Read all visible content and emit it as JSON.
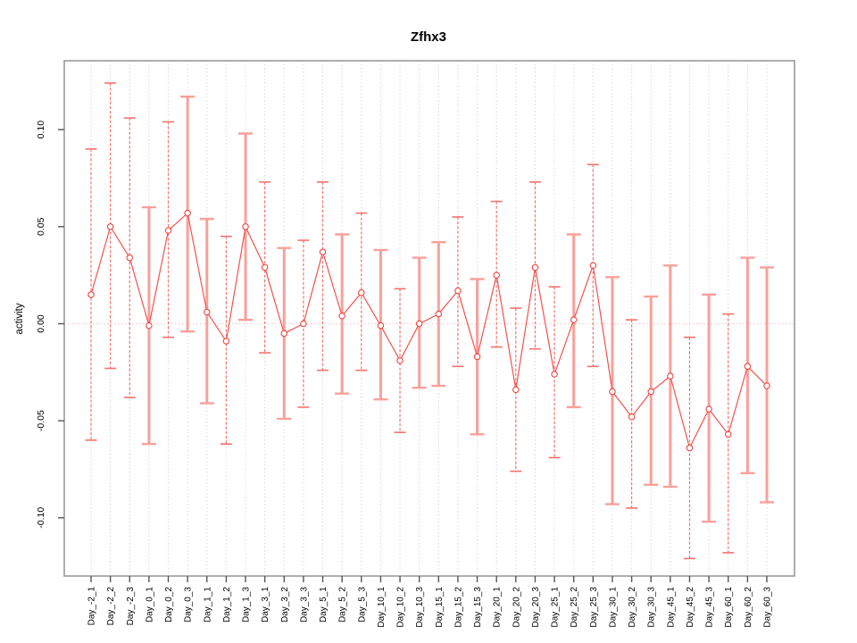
{
  "chart_data": {
    "type": "line",
    "title": "Zfhx3",
    "xlabel": "",
    "ylabel": "activity",
    "legend": "none",
    "grid": "vertical-dotted",
    "zero_reference_line": true,
    "ylim": [
      -0.13,
      0.1355
    ],
    "yticks": [
      -0.1,
      -0.05,
      0.0,
      0.05,
      0.1
    ],
    "ytick_labels": [
      "-0.10",
      "-0.05",
      "0.00",
      "0.05",
      "0.10"
    ],
    "categories": [
      "Day_-2_1",
      "Day_-2_2",
      "Day_-2_3",
      "Day_0_1",
      "Day_0_2",
      "Day_0_3",
      "Day_1_1",
      "Day_1_2",
      "Day_1_3",
      "Day_3_1",
      "Day_3_2",
      "Day_3_3",
      "Day_5_1",
      "Day_5_2",
      "Day_5_3",
      "Day_10_1",
      "Day_10_2",
      "Day_10_3",
      "Day_15_1",
      "Day_15_2",
      "Day_15_3",
      "Day_20_1",
      "Day_20_2",
      "Day_20_3",
      "Day_25_1",
      "Day_25_2",
      "Day_25_3",
      "Day_30_1",
      "Day_30_2",
      "Day_30_3",
      "Day_45_1",
      "Day_45_2",
      "Day_45_3",
      "Day_60_1",
      "Day_60_2",
      "Day_60_3"
    ],
    "series": [
      {
        "name": "activity",
        "marker": "open-circle",
        "values": [
          0.015,
          0.05,
          0.034,
          -0.001,
          0.048,
          0.057,
          0.006,
          -0.009,
          0.05,
          0.029,
          -0.005,
          0.0,
          0.037,
          0.004,
          0.016,
          -0.001,
          -0.019,
          0.0,
          0.005,
          0.017,
          -0.017,
          0.025,
          -0.034,
          0.029,
          -0.026,
          0.002,
          0.03,
          -0.035,
          -0.048,
          -0.035,
          -0.027,
          -0.064,
          -0.044,
          -0.057,
          -0.022,
          -0.032
        ]
      }
    ],
    "error_upper": [
      0.09,
      0.124,
      0.106,
      0.06,
      0.104,
      0.117,
      0.054,
      0.045,
      0.098,
      0.073,
      0.039,
      0.043,
      0.073,
      0.046,
      0.057,
      0.038,
      0.018,
      0.034,
      0.042,
      0.055,
      0.023,
      0.063,
      0.008,
      0.073,
      0.019,
      0.046,
      0.082,
      0.024,
      0.002,
      0.014,
      0.03,
      -0.007,
      0.015,
      0.005,
      0.034,
      0.029
    ],
    "error_lower": [
      -0.06,
      -0.023,
      -0.038,
      -0.062,
      -0.007,
      -0.004,
      -0.041,
      -0.062,
      0.002,
      -0.015,
      -0.049,
      -0.043,
      -0.024,
      -0.036,
      -0.024,
      -0.039,
      -0.056,
      -0.033,
      -0.032,
      -0.022,
      -0.057,
      -0.012,
      -0.076,
      -0.013,
      -0.069,
      -0.043,
      -0.022,
      -0.093,
      -0.095,
      -0.083,
      -0.084,
      -0.121,
      -0.102,
      -0.118,
      -0.077,
      -0.092
    ],
    "error_bar_styles": [
      "dashed",
      "dashed",
      "dashed",
      "solid",
      "dashed",
      "solid",
      "solid",
      "dashed",
      "solid",
      "dashed",
      "solid",
      "dashed",
      "dashed",
      "solid",
      "dashed",
      "solid",
      "dashed",
      "solid",
      "solid",
      "dashed",
      "solid",
      "dashed",
      "dashed",
      "dashed",
      "dashed",
      "solid",
      "dashed",
      "solid",
      "dashed",
      "solid",
      "solid",
      "dashed",
      "solid",
      "dashed",
      "solid",
      "solid"
    ],
    "colors": {
      "series_line": "#f0524d",
      "marker_stroke": "#ee443f",
      "error_bar_solid": "#f9a09b",
      "error_bar_dashed": "#f4726c",
      "gridline": "#dadada",
      "zero_line": "#eec6c3",
      "frame": "#999999",
      "tick": "#555555",
      "text": "#000000"
    }
  }
}
